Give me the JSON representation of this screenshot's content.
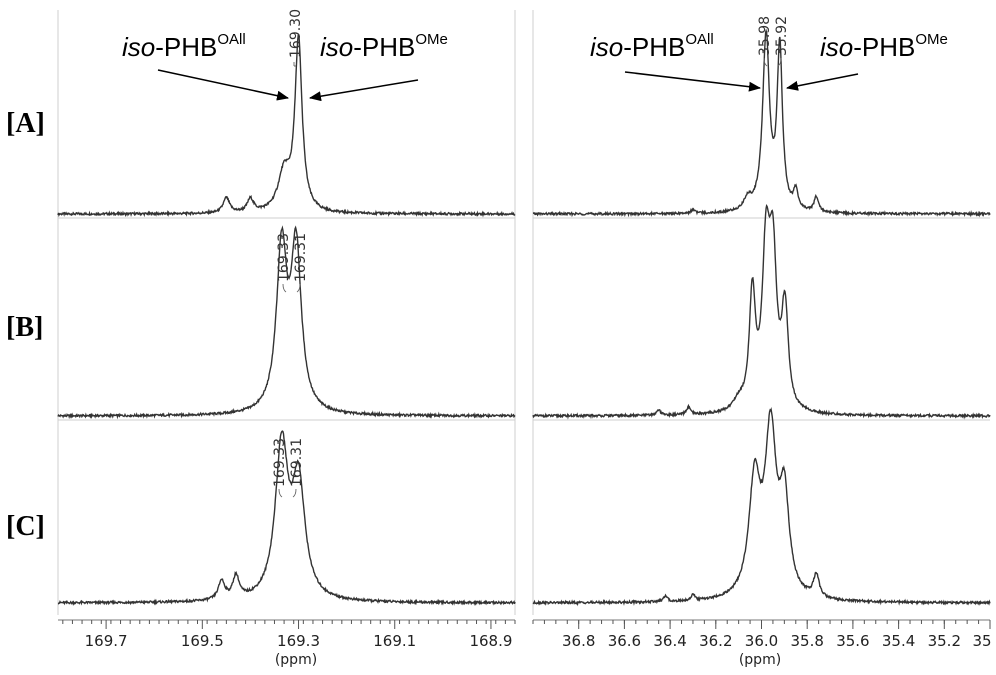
{
  "rows": [
    "[A]",
    "[B]",
    "[C]"
  ],
  "annotations": {
    "left": {
      "allyl": {
        "prefix": "iso",
        "base": "-PHB",
        "sup": "OAll"
      },
      "methyl": {
        "prefix": "iso",
        "base": "-PHB",
        "sup": "OMe"
      }
    },
    "right": {
      "allyl": {
        "prefix": "iso",
        "base": "-PHB",
        "sup": "OAll"
      },
      "methyl": {
        "prefix": "iso",
        "base": "-PHB",
        "sup": "OMe"
      }
    }
  },
  "colors": {
    "trace": "#333333",
    "frame": "#cfcfcf",
    "arrow": "#000000"
  },
  "chart_data": [
    {
      "type": "line",
      "panel": "left",
      "xlabel": "(ppm)",
      "xlim": [
        169.8,
        168.85
      ],
      "x_reversed": true,
      "xticks": [
        169.7,
        169.5,
        169.3,
        169.1,
        168.9
      ],
      "xtick_labels": [
        "169.7",
        "169.5",
        "169.3",
        "169.1",
        "168.9"
      ],
      "series": [
        {
          "row": "[A]",
          "peaks": [
            {
              "ppm": 169.45,
              "height": 0.08,
              "width": 0.008
            },
            {
              "ppm": 169.4,
              "height": 0.07,
              "width": 0.008
            },
            {
              "ppm": 169.33,
              "height": 0.2,
              "width": 0.015
            },
            {
              "ppm": 169.3,
              "height": 0.9,
              "width": 0.009
            }
          ],
          "peak_labels": [
            "169.30"
          ]
        },
        {
          "row": "[B]",
          "peaks": [
            {
              "ppm": 169.335,
              "height": 0.85,
              "width": 0.013
            },
            {
              "ppm": 169.305,
              "height": 0.85,
              "width": 0.013
            }
          ],
          "peak_labels": [
            "169.33",
            "169.31"
          ]
        },
        {
          "row": "[C]",
          "peaks": [
            {
              "ppm": 169.46,
              "height": 0.1,
              "width": 0.008
            },
            {
              "ppm": 169.43,
              "height": 0.12,
              "width": 0.008
            },
            {
              "ppm": 169.335,
              "height": 0.8,
              "width": 0.016
            },
            {
              "ppm": 169.3,
              "height": 0.6,
              "width": 0.016
            }
          ],
          "peak_labels": [
            "169.33",
            "169.31"
          ]
        }
      ]
    },
    {
      "type": "line",
      "panel": "right",
      "xlabel": "(ppm)",
      "xlim": [
        37.0,
        35.0
      ],
      "x_reversed": true,
      "xticks": [
        36.8,
        36.6,
        36.4,
        36.2,
        36.0,
        35.8,
        35.6,
        35.4,
        35.2,
        35.0
      ],
      "xtick_labels": [
        "36.8",
        "36.6",
        "36.4",
        "36.2",
        "36.0",
        "35.8",
        "35.6",
        "35.4",
        "35.2",
        "35"
      ],
      "series": [
        {
          "row": "[A]",
          "peaks": [
            {
              "ppm": 36.06,
              "height": 0.06,
              "width": 0.02
            },
            {
              "ppm": 35.98,
              "height": 0.92,
              "width": 0.018
            },
            {
              "ppm": 35.92,
              "height": 0.85,
              "width": 0.014
            },
            {
              "ppm": 35.85,
              "height": 0.1,
              "width": 0.012
            },
            {
              "ppm": 35.76,
              "height": 0.08,
              "width": 0.012
            },
            {
              "ppm": 36.3,
              "height": 0.02,
              "width": 0.01
            }
          ],
          "peak_labels": [
            "35.98",
            "35.92"
          ]
        },
        {
          "row": "[B]",
          "peaks": [
            {
              "ppm": 36.04,
              "height": 0.6,
              "width": 0.016
            },
            {
              "ppm": 35.98,
              "height": 0.8,
              "width": 0.02
            },
            {
              "ppm": 35.95,
              "height": 0.75,
              "width": 0.02
            },
            {
              "ppm": 35.9,
              "height": 0.4,
              "width": 0.016
            },
            {
              "ppm": 35.89,
              "height": 0.15,
              "width": 0.014
            },
            {
              "ppm": 36.1,
              "height": 0.05,
              "width": 0.03
            },
            {
              "ppm": 36.45,
              "height": 0.03,
              "width": 0.01
            },
            {
              "ppm": 36.32,
              "height": 0.04,
              "width": 0.01
            }
          ],
          "peak_labels": []
        },
        {
          "row": "[C]",
          "peaks": [
            {
              "ppm": 36.03,
              "height": 0.6,
              "width": 0.03
            },
            {
              "ppm": 35.96,
              "height": 0.85,
              "width": 0.03
            },
            {
              "ppm": 35.9,
              "height": 0.5,
              "width": 0.025
            },
            {
              "ppm": 35.76,
              "height": 0.12,
              "width": 0.015
            },
            {
              "ppm": 36.42,
              "height": 0.03,
              "width": 0.01
            },
            {
              "ppm": 36.3,
              "height": 0.03,
              "width": 0.01
            }
          ],
          "peak_labels": []
        }
      ]
    }
  ]
}
